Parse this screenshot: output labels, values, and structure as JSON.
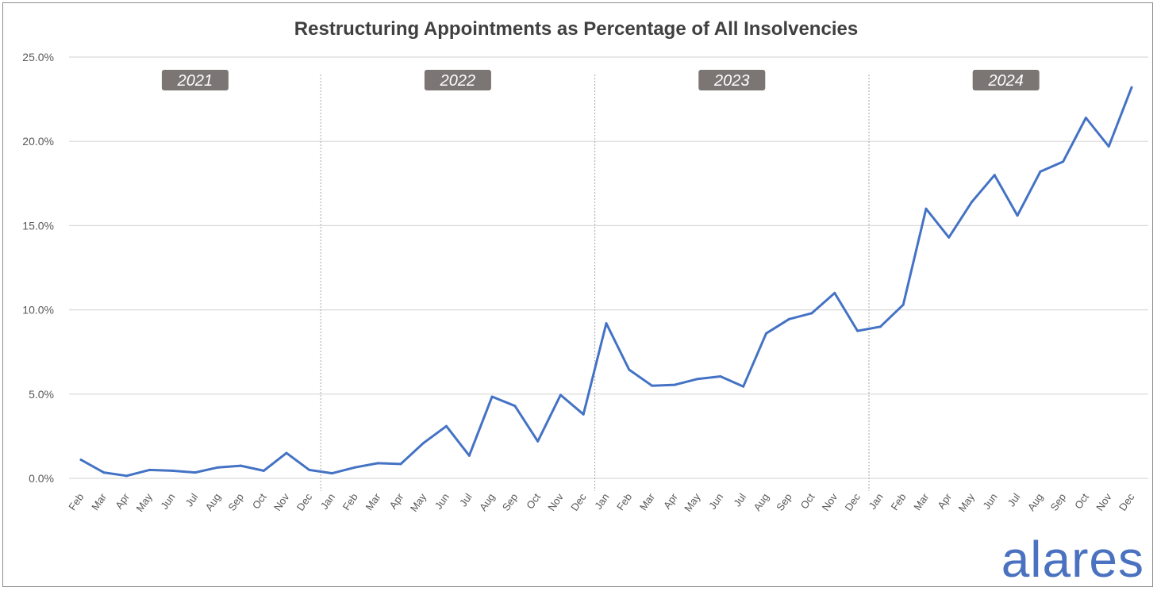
{
  "chart_data": {
    "type": "line",
    "title": "Restructuring Appointments as Percentage of All Insolvencies",
    "xlabel": "",
    "ylabel": "",
    "ylim": [
      0,
      25
    ],
    "yticks": [
      "0.0%",
      "5.0%",
      "10.0%",
      "15.0%",
      "20.0%",
      "25.0%"
    ],
    "ytick_values": [
      0,
      5,
      10,
      15,
      20,
      25
    ],
    "grid": "horizontal",
    "year_labels": [
      {
        "label": "2021",
        "from": 0,
        "to": 10
      },
      {
        "label": "2022",
        "from": 11,
        "to": 22
      },
      {
        "label": "2023",
        "from": 23,
        "to": 34
      },
      {
        "label": "2024",
        "from": 35,
        "to": 46
      }
    ],
    "year_dividers_after": [
      10,
      22,
      34
    ],
    "categories": [
      "Feb",
      "Mar",
      "Apr",
      "May",
      "Jun",
      "Jul",
      "Aug",
      "Sep",
      "Oct",
      "Nov",
      "Dec",
      "Jan",
      "Feb",
      "Mar",
      "Apr",
      "May",
      "Jun",
      "Jul",
      "Aug",
      "Sep",
      "Oct",
      "Nov",
      "Dec",
      "Jan",
      "Feb",
      "Mar",
      "Apr",
      "May",
      "Jun",
      "Jul",
      "Aug",
      "Sep",
      "Oct",
      "Nov",
      "Dec",
      "Jan",
      "Feb",
      "Mar",
      "Apr",
      "May",
      "Jun",
      "Jul",
      "Aug",
      "Sep",
      "Oct",
      "Nov",
      "Dec"
    ],
    "series": [
      {
        "values": [
          1.1,
          0.35,
          0.15,
          0.5,
          0.45,
          0.35,
          0.65,
          0.75,
          0.45,
          1.5,
          0.5,
          0.3,
          0.65,
          0.9,
          0.85,
          2.1,
          3.1,
          1.35,
          4.85,
          4.3,
          2.2,
          4.95,
          3.8,
          9.2,
          6.45,
          5.5,
          5.55,
          5.9,
          6.05,
          5.45,
          8.6,
          9.45,
          9.8,
          11.0,
          8.75,
          9.0,
          10.3,
          16.0,
          14.3,
          16.4,
          18.0,
          15.6,
          18.2,
          18.8,
          21.4,
          19.7,
          23.2
        ],
        "color": "#4472c4"
      }
    ]
  },
  "branding": {
    "logo_text": "alares",
    "logo_color": "#4a72c0"
  },
  "colors": {
    "line": "#4472c4",
    "gridline": "#d9d9d9",
    "divider": "#a6a6a6",
    "year_badge": "#7b7574"
  }
}
